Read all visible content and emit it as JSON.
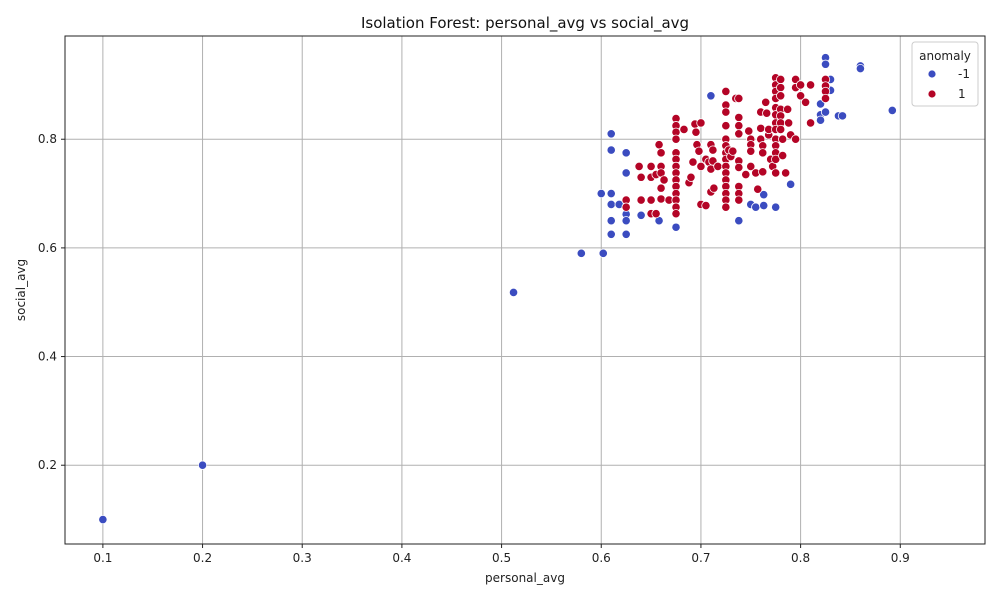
{
  "chart_data": {
    "type": "scatter",
    "title": "Isolation Forest: personal_avg vs social_avg",
    "xlabel": "personal_avg",
    "ylabel": "social_avg",
    "xlim": [
      0.062,
      0.985
    ],
    "ylim": [
      0.055,
      0.99
    ],
    "xticks": [
      0.1,
      0.2,
      0.3,
      0.4,
      0.5,
      0.6,
      0.7,
      0.8,
      0.9
    ],
    "yticks": [
      0.2,
      0.4,
      0.6,
      0.8
    ],
    "grid": true,
    "legend": {
      "title": "anomaly",
      "position": "top-right"
    },
    "series": [
      {
        "name": "-1",
        "color": "#3b4cc0",
        "points": [
          [
            0.1,
            0.1
          ],
          [
            0.2,
            0.2
          ],
          [
            0.512,
            0.518
          ],
          [
            0.58,
            0.59
          ],
          [
            0.602,
            0.59
          ],
          [
            0.6,
            0.7
          ],
          [
            0.61,
            0.81
          ],
          [
            0.61,
            0.78
          ],
          [
            0.61,
            0.7
          ],
          [
            0.61,
            0.68
          ],
          [
            0.61,
            0.65
          ],
          [
            0.61,
            0.625
          ],
          [
            0.618,
            0.68
          ],
          [
            0.625,
            0.775
          ],
          [
            0.625,
            0.738
          ],
          [
            0.625,
            0.662
          ],
          [
            0.625,
            0.65
          ],
          [
            0.625,
            0.625
          ],
          [
            0.64,
            0.66
          ],
          [
            0.658,
            0.65
          ],
          [
            0.675,
            0.638
          ],
          [
            0.71,
            0.88
          ],
          [
            0.738,
            0.65
          ],
          [
            0.75,
            0.68
          ],
          [
            0.755,
            0.675
          ],
          [
            0.763,
            0.698
          ],
          [
            0.763,
            0.678
          ],
          [
            0.775,
            0.675
          ],
          [
            0.79,
            0.717
          ],
          [
            0.82,
            0.865
          ],
          [
            0.82,
            0.845
          ],
          [
            0.82,
            0.835
          ],
          [
            0.825,
            0.95
          ],
          [
            0.825,
            0.938
          ],
          [
            0.825,
            0.85
          ],
          [
            0.83,
            0.91
          ],
          [
            0.83,
            0.89
          ],
          [
            0.838,
            0.843
          ],
          [
            0.842,
            0.843
          ],
          [
            0.86,
            0.935
          ],
          [
            0.86,
            0.93
          ],
          [
            0.892,
            0.853
          ]
        ]
      },
      {
        "name": "1",
        "color": "#b40426",
        "points": [
          [
            0.625,
            0.688
          ],
          [
            0.625,
            0.675
          ],
          [
            0.638,
            0.75
          ],
          [
            0.64,
            0.73
          ],
          [
            0.64,
            0.688
          ],
          [
            0.65,
            0.75
          ],
          [
            0.65,
            0.73
          ],
          [
            0.65,
            0.688
          ],
          [
            0.65,
            0.663
          ],
          [
            0.655,
            0.735
          ],
          [
            0.655,
            0.663
          ],
          [
            0.658,
            0.79
          ],
          [
            0.66,
            0.775
          ],
          [
            0.66,
            0.75
          ],
          [
            0.66,
            0.738
          ],
          [
            0.66,
            0.71
          ],
          [
            0.66,
            0.69
          ],
          [
            0.663,
            0.725
          ],
          [
            0.668,
            0.688
          ],
          [
            0.675,
            0.838
          ],
          [
            0.675,
            0.825
          ],
          [
            0.675,
            0.813
          ],
          [
            0.675,
            0.8
          ],
          [
            0.675,
            0.775
          ],
          [
            0.675,
            0.763
          ],
          [
            0.675,
            0.75
          ],
          [
            0.675,
            0.738
          ],
          [
            0.675,
            0.725
          ],
          [
            0.675,
            0.713
          ],
          [
            0.675,
            0.7
          ],
          [
            0.675,
            0.688
          ],
          [
            0.675,
            0.675
          ],
          [
            0.675,
            0.663
          ],
          [
            0.683,
            0.818
          ],
          [
            0.688,
            0.72
          ],
          [
            0.69,
            0.73
          ],
          [
            0.692,
            0.758
          ],
          [
            0.694,
            0.828
          ],
          [
            0.695,
            0.813
          ],
          [
            0.696,
            0.79
          ],
          [
            0.698,
            0.778
          ],
          [
            0.7,
            0.83
          ],
          [
            0.7,
            0.75
          ],
          [
            0.7,
            0.68
          ],
          [
            0.705,
            0.678
          ],
          [
            0.705,
            0.763
          ],
          [
            0.708,
            0.758
          ],
          [
            0.71,
            0.79
          ],
          [
            0.71,
            0.745
          ],
          [
            0.71,
            0.703
          ],
          [
            0.712,
            0.78
          ],
          [
            0.712,
            0.76
          ],
          [
            0.713,
            0.71
          ],
          [
            0.717,
            0.75
          ],
          [
            0.725,
            0.888
          ],
          [
            0.725,
            0.863
          ],
          [
            0.725,
            0.85
          ],
          [
            0.725,
            0.825
          ],
          [
            0.725,
            0.8
          ],
          [
            0.725,
            0.788
          ],
          [
            0.725,
            0.775
          ],
          [
            0.725,
            0.763
          ],
          [
            0.725,
            0.75
          ],
          [
            0.725,
            0.738
          ],
          [
            0.725,
            0.725
          ],
          [
            0.725,
            0.713
          ],
          [
            0.725,
            0.7
          ],
          [
            0.725,
            0.688
          ],
          [
            0.725,
            0.675
          ],
          [
            0.728,
            0.78
          ],
          [
            0.73,
            0.768
          ],
          [
            0.732,
            0.778
          ],
          [
            0.735,
            0.875
          ],
          [
            0.738,
            0.875
          ],
          [
            0.738,
            0.84
          ],
          [
            0.738,
            0.825
          ],
          [
            0.738,
            0.81
          ],
          [
            0.738,
            0.76
          ],
          [
            0.738,
            0.748
          ],
          [
            0.738,
            0.713
          ],
          [
            0.738,
            0.7
          ],
          [
            0.738,
            0.688
          ],
          [
            0.745,
            0.735
          ],
          [
            0.748,
            0.815
          ],
          [
            0.75,
            0.8
          ],
          [
            0.75,
            0.79
          ],
          [
            0.75,
            0.778
          ],
          [
            0.75,
            0.75
          ],
          [
            0.755,
            0.738
          ],
          [
            0.757,
            0.708
          ],
          [
            0.76,
            0.85
          ],
          [
            0.76,
            0.82
          ],
          [
            0.76,
            0.8
          ],
          [
            0.762,
            0.788
          ],
          [
            0.762,
            0.775
          ],
          [
            0.762,
            0.74
          ],
          [
            0.765,
            0.868
          ],
          [
            0.766,
            0.848
          ],
          [
            0.768,
            0.808
          ],
          [
            0.768,
            0.818
          ],
          [
            0.77,
            0.763
          ],
          [
            0.772,
            0.75
          ],
          [
            0.775,
            0.913
          ],
          [
            0.775,
            0.9
          ],
          [
            0.775,
            0.888
          ],
          [
            0.775,
            0.875
          ],
          [
            0.775,
            0.858
          ],
          [
            0.775,
            0.845
          ],
          [
            0.775,
            0.83
          ],
          [
            0.775,
            0.818
          ],
          [
            0.775,
            0.8
          ],
          [
            0.775,
            0.788
          ],
          [
            0.775,
            0.775
          ],
          [
            0.775,
            0.763
          ],
          [
            0.775,
            0.738
          ],
          [
            0.78,
            0.91
          ],
          [
            0.78,
            0.895
          ],
          [
            0.78,
            0.88
          ],
          [
            0.78,
            0.855
          ],
          [
            0.78,
            0.843
          ],
          [
            0.78,
            0.83
          ],
          [
            0.78,
            0.818
          ],
          [
            0.782,
            0.8
          ],
          [
            0.782,
            0.77
          ],
          [
            0.785,
            0.738
          ],
          [
            0.787,
            0.855
          ],
          [
            0.788,
            0.83
          ],
          [
            0.79,
            0.808
          ],
          [
            0.795,
            0.91
          ],
          [
            0.795,
            0.895
          ],
          [
            0.795,
            0.8
          ],
          [
            0.8,
            0.9
          ],
          [
            0.8,
            0.88
          ],
          [
            0.805,
            0.868
          ],
          [
            0.81,
            0.83
          ],
          [
            0.81,
            0.9
          ],
          [
            0.825,
            0.91
          ],
          [
            0.825,
            0.898
          ],
          [
            0.825,
            0.888
          ],
          [
            0.825,
            0.875
          ]
        ]
      }
    ]
  }
}
